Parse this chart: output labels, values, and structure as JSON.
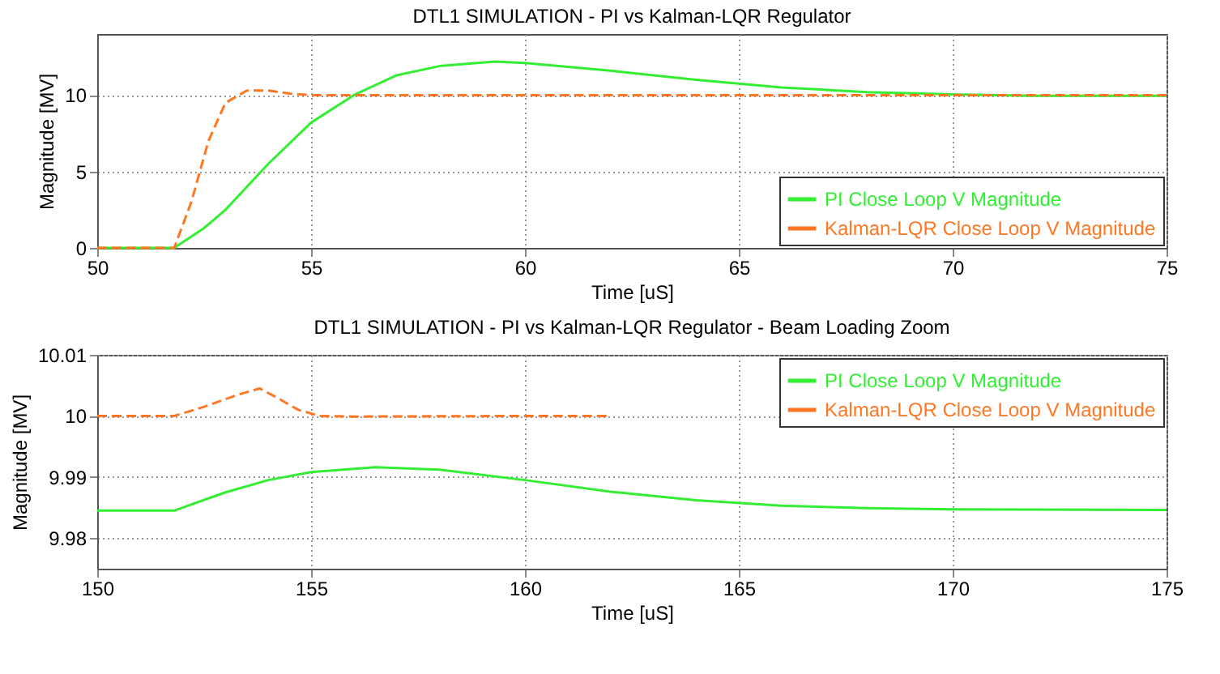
{
  "chart_data": [
    {
      "type": "line",
      "title": "DTL1 SIMULATION  -  PI vs Kalman-LQR Regulator",
      "xlabel": "Time [uS]",
      "ylabel": "Magnitude [MV]",
      "xlim": [
        50,
        75
      ],
      "ylim": [
        0,
        14
      ],
      "xticks": [
        50,
        55,
        60,
        65,
        70,
        75
      ],
      "yticks": [
        0,
        5,
        10
      ],
      "grid": true,
      "legend": "bottom right",
      "series": [
        {
          "name": "PI Close Loop V Magnitude",
          "color": "#33ee33",
          "line_style": "solid",
          "x": [
            50,
            51.8,
            52.5,
            53,
            54,
            55,
            56,
            57,
            58,
            59.3,
            60,
            62,
            64,
            66,
            68,
            70,
            72,
            75
          ],
          "values": [
            0,
            0,
            1.3,
            2.5,
            5.5,
            8.2,
            10,
            11.3,
            11.9,
            12.2,
            12.1,
            11.6,
            11,
            10.5,
            10.2,
            10.05,
            9.95,
            9.95
          ]
        },
        {
          "name": "Kalman-LQR Close Loop V Magnitude",
          "color": "#ff7722",
          "line_style": "dashed",
          "x": [
            50,
            51.8,
            52.2,
            52.6,
            53,
            53.5,
            54,
            54.5,
            55,
            60,
            65,
            70,
            75
          ],
          "values": [
            0,
            0,
            3,
            7,
            9.5,
            10.3,
            10.3,
            10.1,
            10,
            10,
            10,
            10,
            10
          ]
        }
      ]
    },
    {
      "type": "line",
      "title": "DTL1 SIMULATION  -  PI vs Kalman-LQR Regulator - Beam Loading Zoom",
      "xlabel": "Time [uS]",
      "ylabel": "Magnitude [MV]",
      "xlim": [
        150,
        175
      ],
      "ylim": [
        9.975,
        10.01
      ],
      "xticks": [
        150,
        155,
        160,
        165,
        170,
        175
      ],
      "yticks": [
        9.98,
        9.99,
        10,
        10.01
      ],
      "grid": true,
      "legend": "top right",
      "series": [
        {
          "name": "PI Close Loop V Magnitude",
          "color": "#33ee33",
          "line_style": "solid",
          "x": [
            150,
            151.8,
            153,
            154,
            155,
            156.5,
            158,
            160,
            162,
            164,
            166,
            168,
            170,
            175
          ],
          "values": [
            9.9845,
            9.9845,
            9.9875,
            9.9895,
            9.9908,
            9.9916,
            9.9912,
            9.9895,
            9.9876,
            9.9862,
            9.9853,
            9.9849,
            9.9847,
            9.9846
          ]
        },
        {
          "name": "Kalman-LQR Close Loop V Magnitude",
          "color": "#ff7722",
          "line_style": "dashed",
          "x": [
            150,
            151.8,
            152.5,
            153.3,
            153.8,
            154.2,
            154.7,
            155.2,
            156,
            160,
            162
          ],
          "values": [
            10,
            10,
            10.0015,
            10.0035,
            10.0045,
            10.003,
            10.001,
            10,
            9.9999,
            10,
            10
          ]
        }
      ]
    }
  ]
}
